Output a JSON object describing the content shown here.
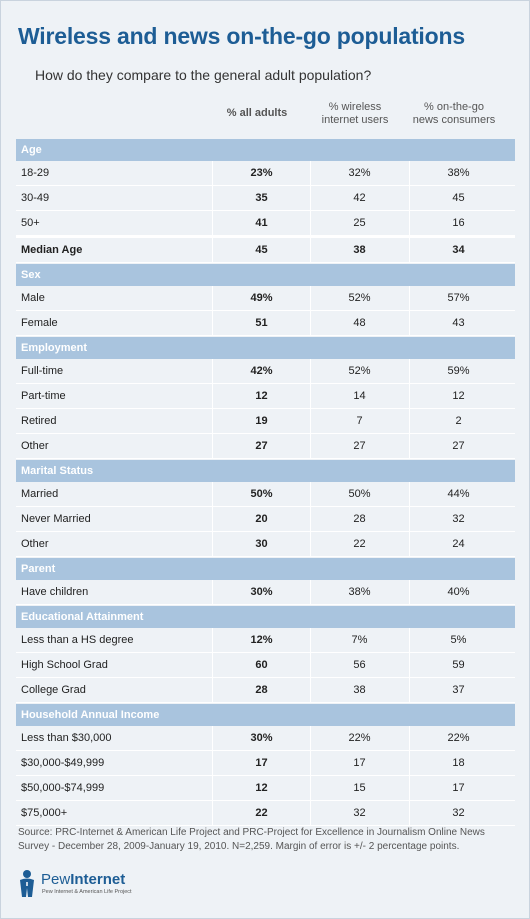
{
  "title": "Wireless and news on-the-go populations",
  "subtitle": "How do they compare to the general adult population?",
  "columns": [
    "% all adults",
    "% wireless internet users",
    "% on-the-go news consumers"
  ],
  "column_lines": {
    "c2a": "% wireless",
    "c2b": "internet users",
    "c3a": "% on-the-go",
    "c3b": "news consumers"
  },
  "chart_data": {
    "type": "table",
    "title": "Wireless and news on-the-go populations",
    "subtitle": "How do they compare to the general adult population?",
    "columns": [
      "% all adults",
      "% wireless internet users",
      "% on-the-go news consumers"
    ],
    "sections": [
      {
        "name": "Age",
        "rows": [
          {
            "label": "18-29",
            "values": [
              "23%",
              "32%",
              "38%"
            ]
          },
          {
            "label": "30-49",
            "values": [
              "35",
              "42",
              "45"
            ]
          },
          {
            "label": "50+",
            "values": [
              "41",
              "25",
              "16"
            ]
          },
          {
            "label": "Median Age",
            "values": [
              "45",
              "38",
              "34"
            ],
            "emphasis": true
          }
        ]
      },
      {
        "name": "Sex",
        "rows": [
          {
            "label": "Male",
            "values": [
              "49%",
              "52%",
              "57%"
            ]
          },
          {
            "label": "Female",
            "values": [
              "51",
              "48",
              "43"
            ]
          }
        ]
      },
      {
        "name": "Employment",
        "rows": [
          {
            "label": "Full-time",
            "values": [
              "42%",
              "52%",
              "59%"
            ]
          },
          {
            "label": "Part-time",
            "values": [
              "12",
              "14",
              "12"
            ]
          },
          {
            "label": "Retired",
            "values": [
              "19",
              "7",
              "2"
            ]
          },
          {
            "label": "Other",
            "values": [
              "27",
              "27",
              "27"
            ]
          }
        ]
      },
      {
        "name": "Marital Status",
        "rows": [
          {
            "label": "Married",
            "values": [
              "50%",
              "50%",
              "44%"
            ]
          },
          {
            "label": "Never Married",
            "values": [
              "20",
              "28",
              "32"
            ]
          },
          {
            "label": "Other",
            "values": [
              "30",
              "22",
              "24"
            ]
          }
        ]
      },
      {
        "name": "Parent",
        "rows": [
          {
            "label": "Have children",
            "values": [
              "30%",
              "38%",
              "40%"
            ]
          }
        ]
      },
      {
        "name": "Educational Attainment",
        "rows": [
          {
            "label": "Less than a HS degree",
            "values": [
              "12%",
              "7%",
              "5%"
            ]
          },
          {
            "label": "High School Grad",
            "values": [
              "60",
              "56",
              "59"
            ]
          },
          {
            "label": "College Grad",
            "values": [
              "28",
              "38",
              "37"
            ]
          }
        ]
      },
      {
        "name": "Household Annual Income",
        "rows": [
          {
            "label": "Less than $30,000",
            "values": [
              "30%",
              "22%",
              "22%"
            ]
          },
          {
            "label": "$30,000-$49,999",
            "values": [
              "17",
              "17",
              "18"
            ]
          },
          {
            "label": "$50,000-$74,999",
            "values": [
              "12",
              "15",
              "17"
            ]
          },
          {
            "label": "$75,000+",
            "values": [
              "22",
              "32",
              "32"
            ]
          }
        ]
      }
    ]
  },
  "source": "Source: PRC-Internet & American Life Project and PRC-Project for Excellence in Journalism Online News Survey - December 28, 2009-January 19, 2010. N=2,259. Margin of error is +/- 2 percentage points.",
  "logo": {
    "brand_light": "Pew",
    "brand_bold": "Internet",
    "tagline": "Pew Internet & American Life Project"
  },
  "colors": {
    "title": "#1d5d95",
    "section_bar": "#a9c4de",
    "background": "#eef2f6"
  }
}
